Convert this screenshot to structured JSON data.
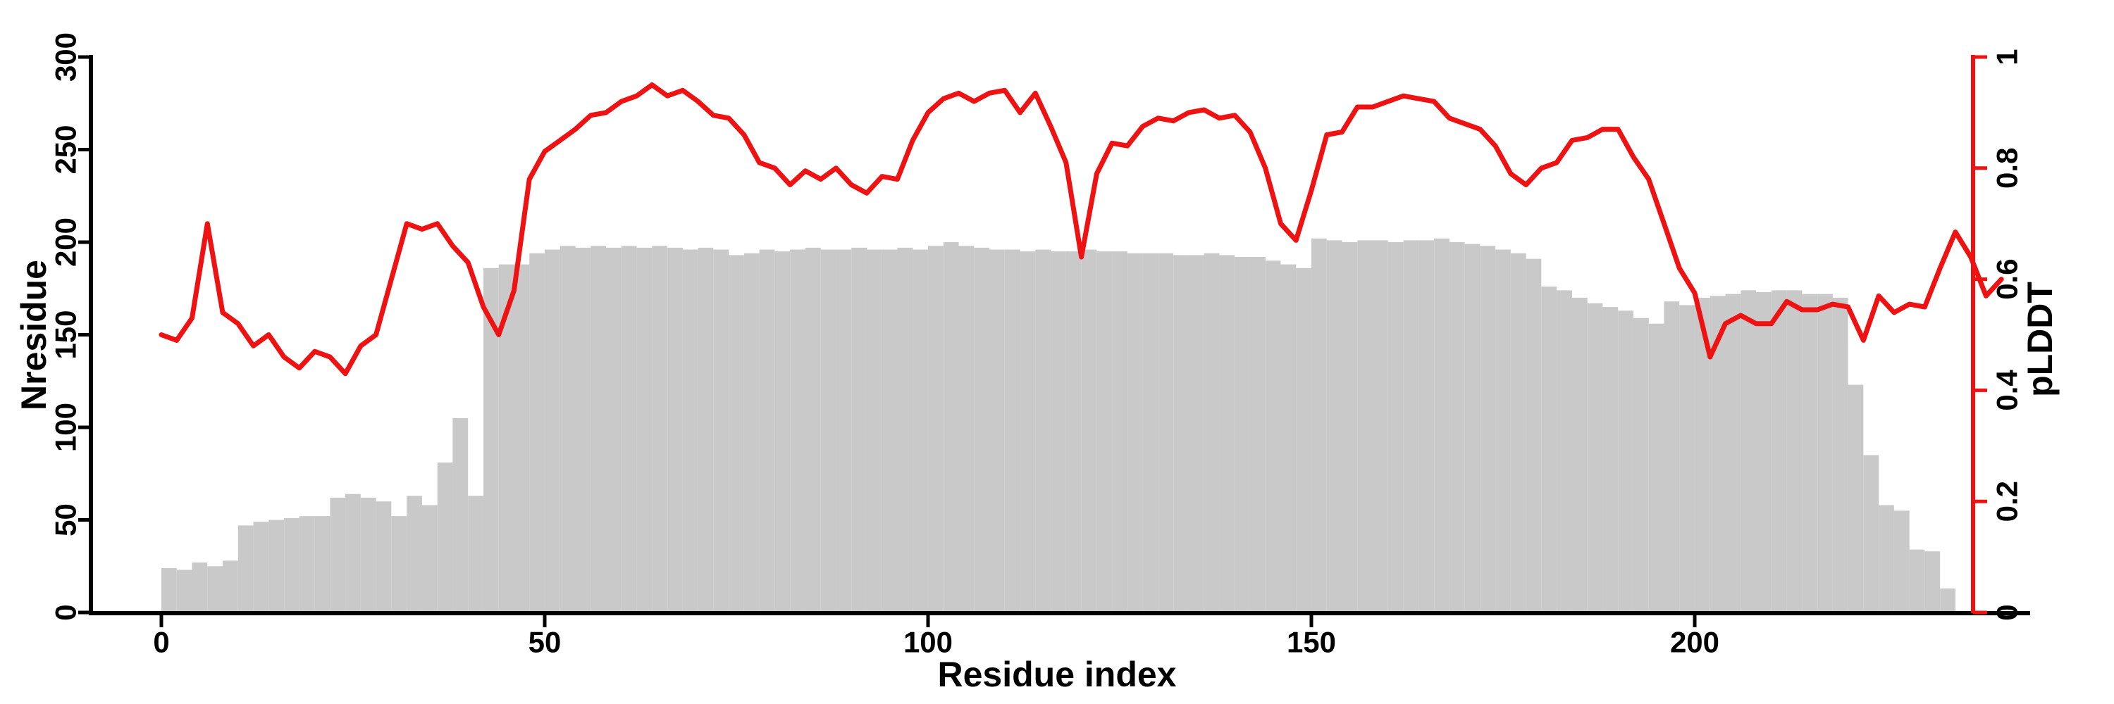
{
  "chart_data": {
    "type": "composite-bar-line",
    "title": "",
    "xlabel": "Residue index",
    "ylabel_left": "Nresidue",
    "ylabel_right": "pLDDT",
    "x_axis": {
      "range": [
        0,
        243
      ],
      "tick_values": [
        0,
        50,
        100,
        150,
        200
      ],
      "tick_labels": [
        "0",
        "50",
        "100",
        "150",
        "200"
      ]
    },
    "y_axis_left": {
      "range": [
        0,
        300
      ],
      "tick_values": [
        0,
        50,
        100,
        150,
        200,
        250,
        300
      ],
      "tick_labels": [
        "0",
        "50",
        "100",
        "150",
        "200",
        "250",
        "300"
      ],
      "color": "#000000"
    },
    "y_axis_right": {
      "range": [
        0,
        1
      ],
      "tick_values": [
        0,
        0.2,
        0.4,
        0.6,
        0.8,
        1
      ],
      "tick_labels": [
        "0",
        "0.2",
        "0.4",
        "0.6",
        "0.8",
        "1"
      ],
      "color": "#ee1212"
    },
    "grid": false,
    "legend": "none",
    "bar_color": "#c9c9c9",
    "line_color": "#ee1212",
    "x": [
      0,
      2,
      4,
      6,
      8,
      10,
      12,
      14,
      16,
      18,
      20,
      22,
      24,
      26,
      28,
      30,
      32,
      34,
      36,
      38,
      40,
      42,
      44,
      46,
      48,
      50,
      52,
      54,
      56,
      58,
      60,
      62,
      64,
      66,
      68,
      70,
      72,
      74,
      76,
      78,
      80,
      82,
      84,
      86,
      88,
      90,
      92,
      94,
      96,
      98,
      100,
      102,
      104,
      106,
      108,
      110,
      112,
      114,
      116,
      118,
      120,
      122,
      124,
      126,
      128,
      130,
      132,
      134,
      136,
      138,
      140,
      142,
      144,
      146,
      148,
      150,
      152,
      154,
      156,
      158,
      160,
      162,
      164,
      166,
      168,
      170,
      172,
      174,
      176,
      178,
      180,
      182,
      184,
      186,
      188,
      190,
      192,
      194,
      196,
      198,
      200,
      202,
      204,
      206,
      208,
      210,
      212,
      214,
      216,
      218,
      220,
      222,
      224,
      226,
      228,
      230,
      232,
      234,
      236,
      238,
      240
    ],
    "series": [
      {
        "name": "Nresidue",
        "type": "bar",
        "axis": "left",
        "values": [
          24,
          23,
          27,
          25,
          28,
          47,
          49,
          50,
          51,
          52,
          52,
          62,
          64,
          62,
          60,
          52,
          63,
          58,
          81,
          105,
          63,
          186,
          188,
          188,
          194,
          196,
          198,
          197,
          198,
          197,
          198,
          197,
          198,
          197,
          196,
          197,
          196,
          193,
          194,
          196,
          195,
          196,
          197,
          196,
          196,
          197,
          196,
          196,
          197,
          196,
          198,
          200,
          198,
          197,
          196,
          196,
          195,
          196,
          195,
          195,
          196,
          195,
          195,
          194,
          194,
          194,
          193,
          193,
          194,
          193,
          192,
          192,
          190,
          188,
          186,
          202,
          201,
          200,
          201,
          201,
          200,
          201,
          201,
          202,
          200,
          199,
          198,
          196,
          194,
          191,
          176,
          174,
          170,
          167,
          165,
          163,
          159,
          156,
          168,
          166,
          170,
          171,
          172,
          174,
          173,
          174,
          174,
          172,
          172,
          170,
          123,
          85,
          58,
          55,
          34,
          33,
          13,
          0,
          0,
          0,
          0
        ]
      },
      {
        "name": "pLDDT",
        "type": "line",
        "axis": "right",
        "values": [
          0.5,
          0.49,
          0.53,
          0.7,
          0.54,
          0.52,
          0.48,
          0.5,
          0.46,
          0.44,
          0.47,
          0.46,
          0.43,
          0.48,
          0.5,
          0.6,
          0.7,
          0.69,
          0.7,
          0.66,
          0.63,
          0.55,
          0.5,
          0.58,
          0.78,
          0.83,
          0.85,
          0.87,
          0.895,
          0.9,
          0.92,
          0.93,
          0.95,
          0.93,
          0.94,
          0.92,
          0.895,
          0.89,
          0.86,
          0.81,
          0.8,
          0.77,
          0.795,
          0.78,
          0.8,
          0.77,
          0.755,
          0.785,
          0.78,
          0.85,
          0.9,
          0.925,
          0.935,
          0.92,
          0.935,
          0.94,
          0.9,
          0.935,
          0.875,
          0.81,
          0.64,
          0.79,
          0.845,
          0.84,
          0.875,
          0.89,
          0.885,
          0.9,
          0.905,
          0.89,
          0.895,
          0.865,
          0.8,
          0.7,
          0.67,
          0.76,
          0.86,
          0.865,
          0.91,
          0.91,
          0.92,
          0.93,
          0.925,
          0.92,
          0.89,
          0.88,
          0.87,
          0.84,
          0.79,
          0.77,
          0.8,
          0.81,
          0.85,
          0.855,
          0.87,
          0.87,
          0.82,
          0.78,
          0.7,
          0.62,
          0.575,
          0.46,
          0.52,
          0.535,
          0.52,
          0.52,
          0.56,
          0.545,
          0.545,
          0.555,
          0.55,
          0.49,
          0.57,
          0.54,
          0.555,
          0.55,
          0.62,
          0.685,
          0.64,
          0.57,
          0.6
        ]
      }
    ]
  }
}
